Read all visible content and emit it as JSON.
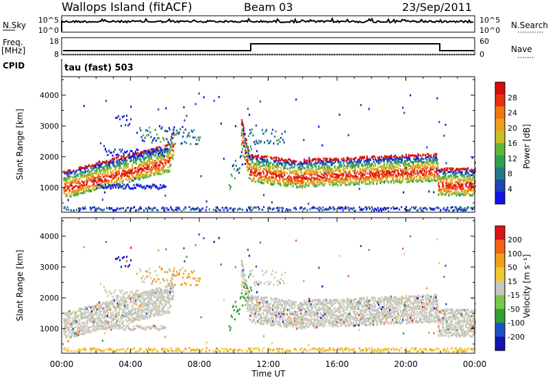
{
  "header": {
    "station": "Wallops Island (fitACF)",
    "beam": "Beam 03",
    "date": "23/Sep/2011"
  },
  "top_panels": {
    "nsky_label": "N.Sky",
    "nsky_ticks": [
      "10^5",
      "10^0"
    ],
    "nsearch_label": "N.Search",
    "nsearch_ticks": [
      "10^5",
      "10^0"
    ],
    "freq_label_1": "Freq.",
    "freq_label_2": "[MHz]",
    "freq_ticks": [
      "18",
      "8"
    ],
    "nave_label": "Nave",
    "nave_ticks": [
      "60",
      "0"
    ],
    "cpid_label": "CPID",
    "cpid_value": "tau (fast) 503"
  },
  "chart_data": [
    {
      "type": "heatmap",
      "panel": "power",
      "ylabel": "Slant Range [km]",
      "yticks": [
        "4000",
        "3000",
        "2000",
        "1000"
      ],
      "yrange_km": [
        200,
        4600
      ],
      "colorbar": {
        "label": "Power [dB]",
        "ticks": [
          "28",
          "24",
          "20",
          "16",
          "12",
          "8",
          "4"
        ],
        "range": [
          0,
          32
        ],
        "colors": [
          "#1414e6",
          "#1e46b4",
          "#28788c",
          "#32a050",
          "#64b43c",
          "#c8be28",
          "#f0a01e",
          "#f07814",
          "#e6320f",
          "#dc0a0a"
        ]
      },
      "features": [
        {
          "label": "main_band",
          "time_h": [
            0.0,
            6.0,
            10.8,
            13.5,
            21.8,
            22.0,
            24.0
          ],
          "range_km": [
            950,
            1800,
            2400,
            1500,
            1550,
            950,
            950
          ]
        }
      ]
    },
    {
      "type": "heatmap",
      "panel": "velocity",
      "ylabel": "Slant Range [km]",
      "yticks": [
        "4000",
        "3000",
        "2000",
        "1000"
      ],
      "yrange_km": [
        200,
        4600
      ],
      "xlabel": "Time UT",
      "xticks": [
        "00:00",
        "04:00",
        "08:00",
        "12:00",
        "16:00",
        "20:00",
        "00:00"
      ],
      "colorbar": {
        "label": "Velocity [m s⁻¹]",
        "ticks": [
          "200",
          "100",
          "50",
          "15",
          "-15",
          "-50",
          "-100",
          "-200"
        ],
        "colors": [
          "#1414b4",
          "#1e50c8",
          "#32a032",
          "#78c850",
          "#c8c8be",
          "#f0c832",
          "#f0a01e",
          "#f06414",
          "#dc1414"
        ]
      }
    }
  ],
  "colors": {
    "ground_scatter": "#c8c8be",
    "axis": "#000000"
  }
}
